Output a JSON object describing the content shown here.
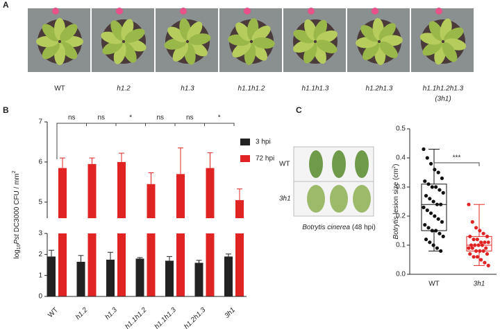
{
  "panel_a": {
    "label": "A",
    "genotypes": [
      "WT",
      "h1.2",
      "h1.3",
      "h1.1h1.2",
      "h1.1h1.3",
      "h1.2h1.3",
      "h1.1h1.2h1.3"
    ],
    "last_note": "(3h1)"
  },
  "chart_data": [
    {
      "type": "bar",
      "label": "B",
      "ylabel": {
        "pre": "log",
        "sub": "10",
        "italic": "Pst",
        "post": " DC3000 CFU / mm",
        "sup": "2"
      },
      "categories": [
        "WT",
        "h1.2",
        "h1.3",
        "h1.1h1.2",
        "h1.1h1.3",
        "h1.2h1.3",
        "3h1"
      ],
      "series": [
        {
          "name": "3 hpi",
          "color": "#222222",
          "values": [
            1.9,
            1.65,
            1.75,
            1.8,
            1.7,
            1.6,
            1.9
          ],
          "errors": [
            0.3,
            0.3,
            0.35,
            0.05,
            0.2,
            0.12,
            0.12
          ]
        },
        {
          "name": "72 hpi",
          "color": "#e02424",
          "values": [
            5.85,
            5.95,
            6.0,
            5.45,
            5.7,
            5.85,
            5.05
          ],
          "errors": [
            0.25,
            0.15,
            0.22,
            0.28,
            0.65,
            0.38,
            0.28
          ]
        }
      ],
      "segments": [
        {
          "ylim": [
            0,
            3
          ],
          "yticks": [
            0,
            1,
            2,
            3
          ]
        },
        {
          "ylim": [
            4.6,
            7
          ],
          "yticks": [
            5,
            6,
            7
          ]
        }
      ],
      "significance": [
        null,
        "ns",
        "ns",
        "*",
        "ns",
        "ns",
        "*"
      ]
    },
    {
      "type": "box",
      "label": "C",
      "ylabel": {
        "italic": "Botrytis",
        "post": " lesion size (cm",
        "sup": "2",
        "end": ")"
      },
      "categories": [
        "WT",
        "3h1"
      ],
      "colors": [
        "#111111",
        "#e02424"
      ],
      "boxes": [
        {
          "min": 0.08,
          "q1": 0.15,
          "median": 0.24,
          "q3": 0.31,
          "max": 0.43,
          "points": [
            0.43,
            0.4,
            0.38,
            0.36,
            0.35,
            0.33,
            0.32,
            0.31,
            0.3,
            0.3,
            0.29,
            0.28,
            0.27,
            0.26,
            0.25,
            0.24,
            0.24,
            0.23,
            0.22,
            0.21,
            0.2,
            0.19,
            0.18,
            0.17,
            0.16,
            0.15,
            0.15,
            0.14,
            0.13,
            0.12,
            0.11,
            0.1,
            0.09,
            0.08
          ]
        },
        {
          "min": 0.03,
          "q1": 0.08,
          "median": 0.1,
          "q3": 0.13,
          "max": 0.24,
          "points": [
            0.24,
            0.18,
            0.16,
            0.15,
            0.14,
            0.13,
            0.13,
            0.12,
            0.12,
            0.11,
            0.11,
            0.11,
            0.1,
            0.1,
            0.1,
            0.1,
            0.09,
            0.09,
            0.09,
            0.08,
            0.08,
            0.08,
            0.07,
            0.07,
            0.06,
            0.06,
            0.05,
            0.04,
            0.03
          ]
        }
      ],
      "ylim": [
        0,
        0.5
      ],
      "yticks": [
        {
          "value": 0,
          "label": "0.0"
        },
        {
          "value": 0.1,
          "label": "0.1"
        },
        {
          "value": 0.2,
          "label": "0.2"
        },
        {
          "value": 0.3,
          "label": "0.3"
        },
        {
          "value": 0.4,
          "label": "0.4"
        },
        {
          "value": 0.5,
          "label": "0.5"
        }
      ],
      "significance": "***"
    }
  ],
  "panel_c_photo": {
    "rows": [
      "WT",
      "3h1"
    ],
    "caption_italic": "Botrytis cinerea",
    "caption_rest": " (48 hpi)"
  }
}
